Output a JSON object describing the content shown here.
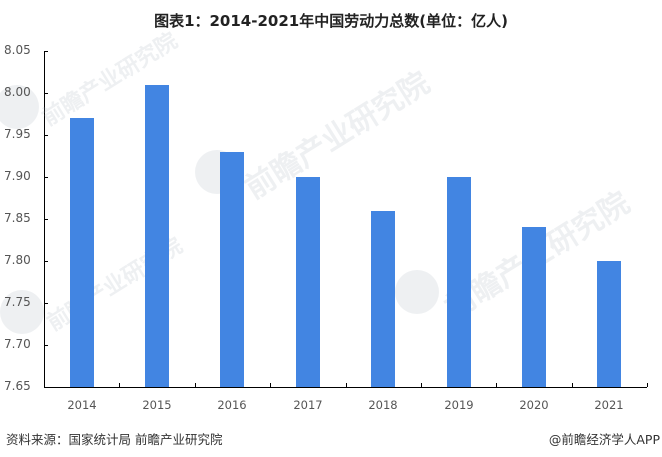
{
  "title": "图表1：2014-2021年中国劳动力总数(单位：亿人)",
  "footer": {
    "source": "资料来源：国家统计局 前瞻产业研究院",
    "credit": "@前瞻经济学人APP"
  },
  "watermark": {
    "text": "前瞻产业研究院",
    "subtext": "中国产业咨询领导者"
  },
  "colors": {
    "bar": "#4285E2",
    "axis": "#000000"
  },
  "chart_data": {
    "type": "bar",
    "title": "图表1：2014-2021年中国劳动力总数(单位：亿人)",
    "xlabel": "",
    "ylabel": "",
    "categories": [
      "2014",
      "2015",
      "2016",
      "2017",
      "2018",
      "2019",
      "2020",
      "2021"
    ],
    "values": [
      7.97,
      8.01,
      7.93,
      7.9,
      7.86,
      7.9,
      7.84,
      7.8
    ],
    "ylim": [
      7.65,
      8.05
    ],
    "yticks": [
      "7.65",
      "7.70",
      "7.75",
      "7.80",
      "7.85",
      "7.90",
      "7.95",
      "8.00",
      "8.05"
    ],
    "unit": "亿人",
    "grid": false,
    "legend": null
  }
}
